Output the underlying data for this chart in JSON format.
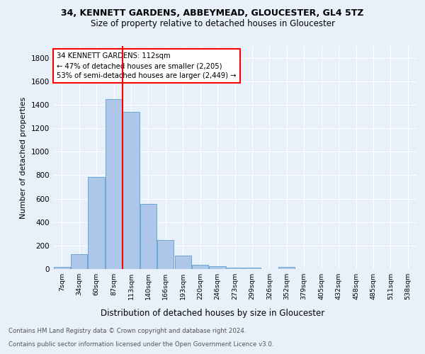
{
  "title1": "34, KENNETT GARDENS, ABBEYMEAD, GLOUCESTER, GL4 5TZ",
  "title2": "Size of property relative to detached houses in Gloucester",
  "xlabel": "Distribution of detached houses by size in Gloucester",
  "ylabel": "Number of detached properties",
  "bin_labels": [
    "7sqm",
    "34sqm",
    "60sqm",
    "87sqm",
    "113sqm",
    "140sqm",
    "166sqm",
    "193sqm",
    "220sqm",
    "246sqm",
    "273sqm",
    "299sqm",
    "326sqm",
    "352sqm",
    "379sqm",
    "405sqm",
    "432sqm",
    "458sqm",
    "485sqm",
    "511sqm",
    "538sqm"
  ],
  "bar_values": [
    20,
    128,
    785,
    1445,
    1340,
    555,
    245,
    112,
    35,
    25,
    15,
    15,
    0,
    20,
    0,
    0,
    0,
    0,
    0,
    0,
    0
  ],
  "bar_color": "#aec6e8",
  "bar_edge_color": "#5a9fd4",
  "vline_x_index": 4,
  "annotation_title": "34 KENNETT GARDENS: 112sqm",
  "annotation_line1": "← 47% of detached houses are smaller (2,205)",
  "annotation_line2": "53% of semi-detached houses are larger (2,449) →",
  "footnote1": "Contains HM Land Registry data © Crown copyright and database right 2024.",
  "footnote2": "Contains public sector information licensed under the Open Government Licence v3.0.",
  "bg_color": "#e8f0fa",
  "grid_color": "#ffffff",
  "ylim": [
    0,
    1900
  ],
  "yticks": [
    0,
    200,
    400,
    600,
    800,
    1000,
    1200,
    1400,
    1600,
    1800
  ]
}
